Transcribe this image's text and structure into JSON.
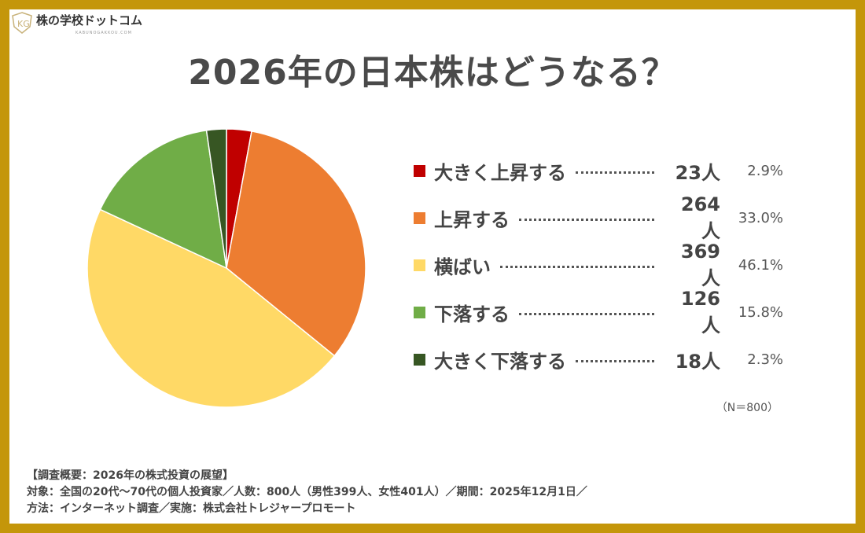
{
  "logo": {
    "name": "株の学校ドットコム",
    "sub": "KABUNOGAKKOU.COM"
  },
  "chart_data": {
    "type": "pie",
    "title": "2026年の日本株はどうなる？",
    "slices": [
      {
        "label": "大きく上昇する",
        "count": "23人",
        "percent": "2.9%",
        "value": 2.9,
        "color": "#C00000"
      },
      {
        "label": "上昇する",
        "count": "264人",
        "percent": "33.0%",
        "value": 33.0,
        "color": "#ED7D31"
      },
      {
        "label": "横ばい",
        "count": "369人",
        "percent": "46.1%",
        "value": 46.1,
        "color": "#FFD966"
      },
      {
        "label": "下落する",
        "count": "126人",
        "percent": "15.8%",
        "value": 15.8,
        "color": "#70AD47"
      },
      {
        "label": "大きく下落する",
        "count": "18人",
        "percent": "2.3%",
        "value": 2.3,
        "color": "#375623"
      }
    ],
    "start": "top",
    "direction": "clockwise",
    "legend": "right",
    "n_label": "（N＝800）"
  },
  "footer": {
    "line1": "【調査概要：2026年の株式投資の展望】",
    "line2": "対象：全国の20代～70代の個人投資家／人数：800人（男性399人、女性401人）／期間：2025年12月1日／",
    "line3": "方法：インターネット調査／実施：株式会社トレジャープロモート"
  }
}
